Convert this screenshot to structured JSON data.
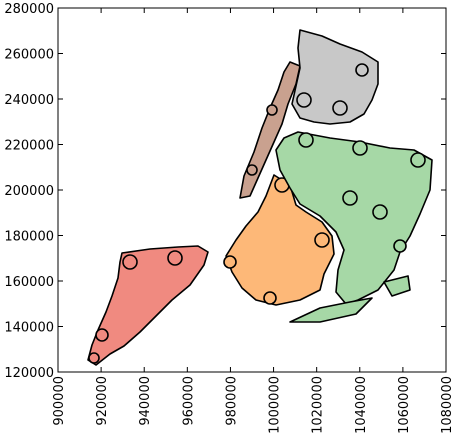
{
  "chart_data": {
    "type": "map",
    "xlim": [
      900000,
      1080000
    ],
    "ylim": [
      120000,
      280000
    ],
    "xticks": [
      900000,
      920000,
      940000,
      960000,
      980000,
      1000000,
      1020000,
      1040000,
      1060000,
      1080000
    ],
    "yticks": [
      120000,
      140000,
      160000,
      180000,
      200000,
      220000,
      240000,
      260000,
      280000
    ]
  }
}
